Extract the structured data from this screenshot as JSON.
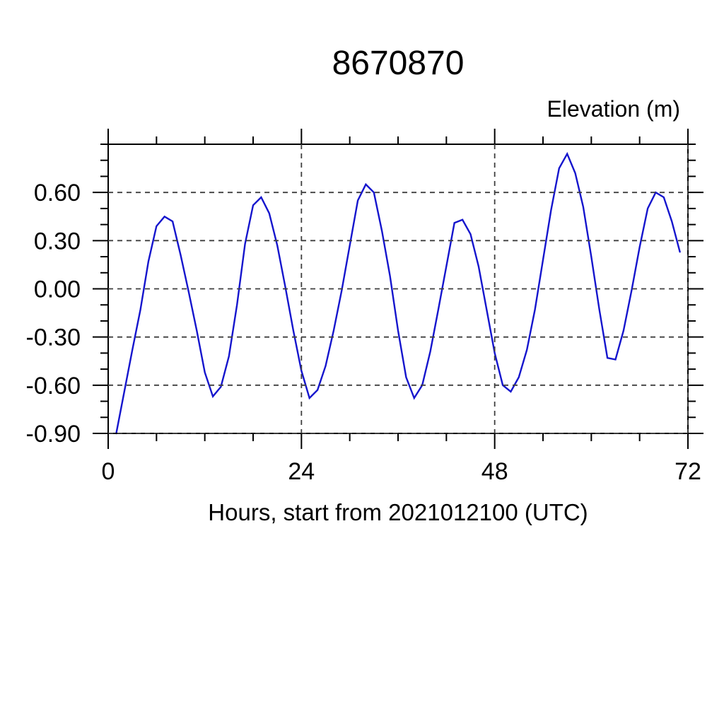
{
  "chart_data": {
    "type": "line",
    "title": "8670870",
    "ylabel": "Elevation (m)",
    "xlabel": "Hours, start from 2021012100 (UTC)",
    "xlim": [
      0,
      72
    ],
    "ylim": [
      -0.9,
      0.9
    ],
    "x_ticks_major": [
      0,
      24,
      48,
      72
    ],
    "x_tick_labels": [
      "0",
      "24",
      "48",
      "72"
    ],
    "x_ticks_minor": [
      6,
      12,
      18,
      30,
      36,
      42,
      54,
      60,
      66
    ],
    "y_ticks_major": [
      0.6,
      0.3,
      0.0,
      -0.3,
      -0.6,
      -0.9
    ],
    "y_tick_labels": [
      "0.60",
      "0.30",
      "0.00",
      "-0.30",
      "-0.60",
      "-0.90"
    ],
    "y_ticks_minor": [
      0.9,
      0.8,
      0.7,
      0.5,
      0.4,
      0.2,
      0.1,
      -0.1,
      -0.2,
      -0.4,
      -0.5,
      -0.7,
      -0.8
    ],
    "x_gridlines": [
      24,
      48,
      72
    ],
    "y_gridlines": [
      0.6,
      0.3,
      0.0,
      -0.3,
      -0.6,
      -0.9
    ],
    "grid_style": "dashed",
    "line_color": "#1515cd",
    "axis_color": "#000000",
    "grid_color": "#3f3f3f",
    "series": [
      {
        "name": "elevation",
        "x": [
          1,
          2,
          3,
          4,
          5,
          6,
          7,
          8,
          9,
          10,
          11,
          12,
          13,
          14,
          15,
          16,
          17,
          18,
          19,
          20,
          21,
          22,
          23,
          24,
          25,
          26,
          27,
          28,
          29,
          30,
          31,
          32,
          33,
          34,
          35,
          36,
          37,
          38,
          39,
          40,
          41,
          42,
          43,
          44,
          45,
          46,
          47,
          48,
          49,
          50,
          51,
          52,
          53,
          54,
          55,
          56,
          57,
          58,
          59,
          60,
          61,
          62,
          63,
          64,
          65,
          66,
          67,
          68,
          69,
          70,
          71
        ],
        "values": [
          -0.9,
          -0.64,
          -0.38,
          -0.13,
          0.17,
          0.39,
          0.45,
          0.42,
          0.21,
          -0.02,
          -0.26,
          -0.52,
          -0.67,
          -0.61,
          -0.42,
          -0.1,
          0.28,
          0.52,
          0.57,
          0.47,
          0.27,
          0.01,
          -0.26,
          -0.51,
          -0.68,
          -0.63,
          -0.48,
          -0.26,
          -0.01,
          0.27,
          0.55,
          0.65,
          0.6,
          0.36,
          0.08,
          -0.26,
          -0.55,
          -0.68,
          -0.6,
          -0.39,
          -0.13,
          0.14,
          0.41,
          0.43,
          0.34,
          0.14,
          -0.13,
          -0.4,
          -0.6,
          -0.64,
          -0.55,
          -0.38,
          -0.13,
          0.18,
          0.49,
          0.75,
          0.84,
          0.72,
          0.51,
          0.2,
          -0.13,
          -0.43,
          -0.44,
          -0.26,
          -0.01,
          0.26,
          0.5,
          0.6,
          0.57,
          0.42,
          0.23
        ]
      }
    ]
  }
}
